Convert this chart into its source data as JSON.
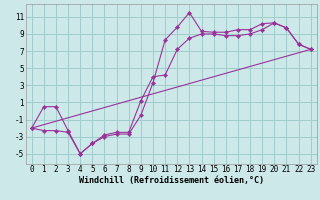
{
  "bg_color": "#cce8e8",
  "grid_color": "#a0cccc",
  "line_color": "#993399",
  "xlabel": "Windchill (Refroidissement éolien,°C)",
  "yticks": [
    -5,
    -3,
    -1,
    1,
    3,
    5,
    7,
    9,
    11
  ],
  "xticks": [
    0,
    1,
    2,
    3,
    4,
    5,
    6,
    7,
    8,
    9,
    10,
    11,
    12,
    13,
    14,
    15,
    16,
    17,
    18,
    19,
    20,
    21,
    22,
    23
  ],
  "xlim": [
    -0.5,
    23.5
  ],
  "ylim": [
    -6.2,
    12.5
  ],
  "series1_x": [
    0,
    1,
    2,
    3,
    4,
    5,
    6,
    7,
    8,
    9,
    10,
    11,
    12,
    13,
    14,
    15,
    16,
    17,
    18,
    19,
    20,
    21,
    22,
    23
  ],
  "series1_y": [
    -2.0,
    0.5,
    0.5,
    -2.3,
    -5.0,
    -3.8,
    -3.0,
    -2.7,
    -2.7,
    -0.5,
    3.3,
    8.3,
    9.8,
    11.5,
    9.3,
    9.2,
    9.2,
    9.5,
    9.5,
    10.2,
    10.3,
    9.7,
    7.8,
    7.2
  ],
  "series2_x": [
    0,
    1,
    2,
    3,
    4,
    5,
    6,
    7,
    8,
    9,
    10,
    11,
    12,
    13,
    14,
    15,
    16,
    17,
    18,
    19,
    20,
    21,
    22,
    23
  ],
  "series2_y": [
    -2.0,
    -2.3,
    -2.3,
    -2.5,
    -5.0,
    -3.8,
    -2.8,
    -2.5,
    -2.5,
    1.2,
    4.0,
    4.2,
    7.2,
    8.5,
    9.0,
    9.0,
    8.8,
    8.8,
    9.0,
    9.5,
    10.3,
    9.7,
    7.8,
    7.2
  ],
  "series3_x": [
    0,
    23
  ],
  "series3_y": [
    -2.0,
    7.2
  ]
}
